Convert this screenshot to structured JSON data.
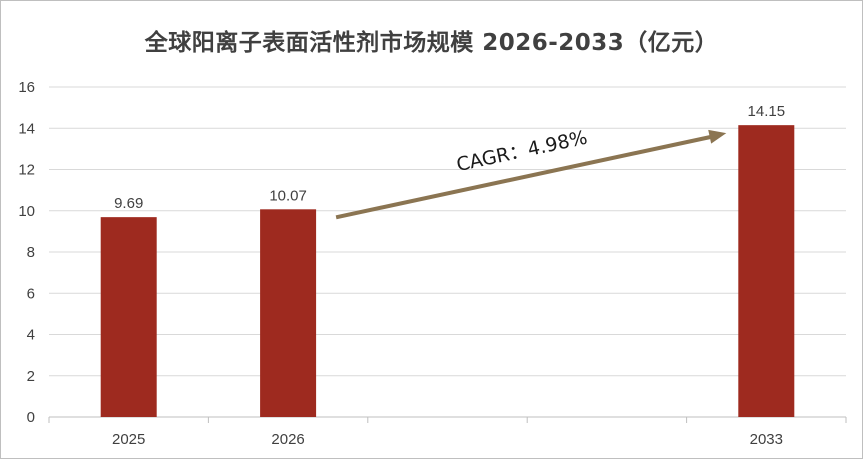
{
  "chart_data": {
    "type": "bar",
    "title": "全球阳离子表面活性剂市场规模 2026-2033（亿元）",
    "categories": [
      "2025",
      "2026",
      "",
      "",
      "2033"
    ],
    "values": [
      9.69,
      10.07,
      null,
      null,
      14.15
    ],
    "data_labels": [
      "9.69",
      "10.07",
      "",
      "",
      "14.15"
    ],
    "y_ticks": [
      "0",
      "2",
      "4",
      "6",
      "8",
      "10",
      "12",
      "14",
      "16"
    ],
    "ylim": [
      0,
      16
    ],
    "xlabel": "",
    "ylabel": "",
    "grid": true,
    "legend": "none",
    "bar_color": "#9e2a1f",
    "annotation": {
      "text": "CAGR：4.98%",
      "from_category": "2026",
      "to_category": "2033",
      "arrow_color": "#8b7552"
    }
  }
}
